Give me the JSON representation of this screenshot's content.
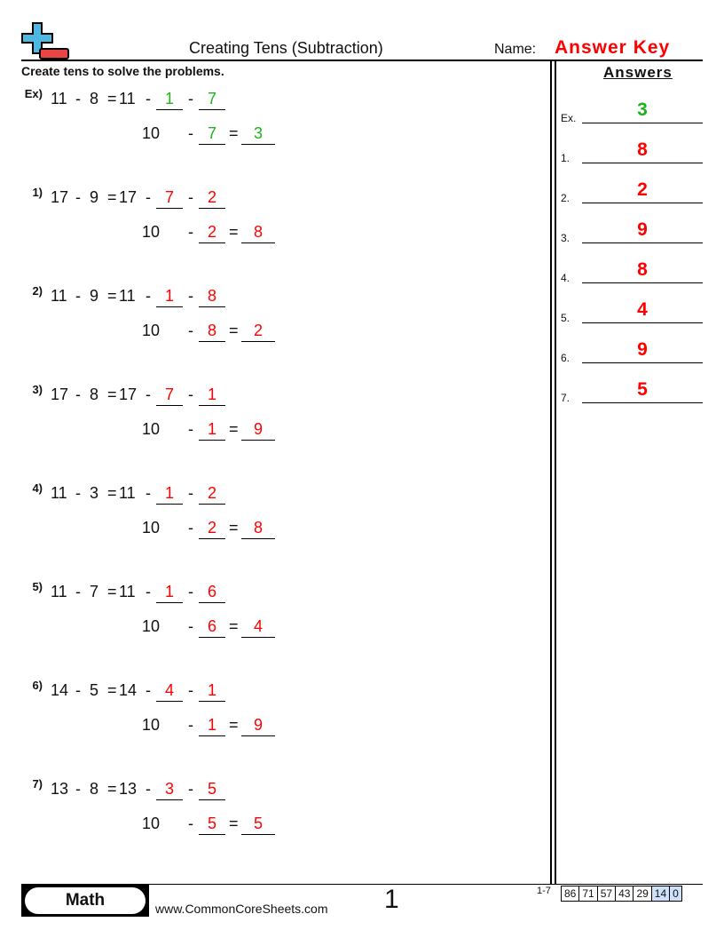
{
  "header": {
    "title": "Creating Tens (Subtraction)",
    "name_label": "Name:",
    "answer_key": "Answer Key",
    "instructions": "Create tens to solve the problems."
  },
  "colors": {
    "example": "#1db31d",
    "answer": "#ff0000",
    "logo_blue": "#4fb8e0",
    "logo_red": "#e84545"
  },
  "problems": [
    {
      "label": "Ex)",
      "a": "11",
      "b": "8",
      "c": "11",
      "d": "1",
      "e": "7",
      "ten": "10",
      "f": "7",
      "g": "3",
      "example": true
    },
    {
      "label": "1)",
      "a": "17",
      "b": "9",
      "c": "17",
      "d": "7",
      "e": "2",
      "ten": "10",
      "f": "2",
      "g": "8"
    },
    {
      "label": "2)",
      "a": "11",
      "b": "9",
      "c": "11",
      "d": "1",
      "e": "8",
      "ten": "10",
      "f": "8",
      "g": "2"
    },
    {
      "label": "3)",
      "a": "17",
      "b": "8",
      "c": "17",
      "d": "7",
      "e": "1",
      "ten": "10",
      "f": "1",
      "g": "9"
    },
    {
      "label": "4)",
      "a": "11",
      "b": "3",
      "c": "11",
      "d": "1",
      "e": "2",
      "ten": "10",
      "f": "2",
      "g": "8"
    },
    {
      "label": "5)",
      "a": "11",
      "b": "7",
      "c": "11",
      "d": "1",
      "e": "6",
      "ten": "10",
      "f": "6",
      "g": "4"
    },
    {
      "label": "6)",
      "a": "14",
      "b": "5",
      "c": "14",
      "d": "4",
      "e": "1",
      "ten": "10",
      "f": "1",
      "g": "9"
    },
    {
      "label": "7)",
      "a": "13",
      "b": "8",
      "c": "13",
      "d": "3",
      "e": "5",
      "ten": "10",
      "f": "5",
      "g": "5"
    }
  ],
  "answers": {
    "heading": "Answers",
    "items": [
      {
        "label": "Ex.",
        "value": "3",
        "example": true
      },
      {
        "label": "1.",
        "value": "8"
      },
      {
        "label": "2.",
        "value": "2"
      },
      {
        "label": "3.",
        "value": "9"
      },
      {
        "label": "4.",
        "value": "8"
      },
      {
        "label": "5.",
        "value": "4"
      },
      {
        "label": "6.",
        "value": "9"
      },
      {
        "label": "7.",
        "value": "5"
      }
    ]
  },
  "footer": {
    "subject": "Math",
    "url": "www.CommonCoreSheets.com",
    "page": "1",
    "range": "1-7",
    "scores": [
      "86",
      "71",
      "57",
      "43",
      "29",
      "14",
      "0"
    ]
  }
}
